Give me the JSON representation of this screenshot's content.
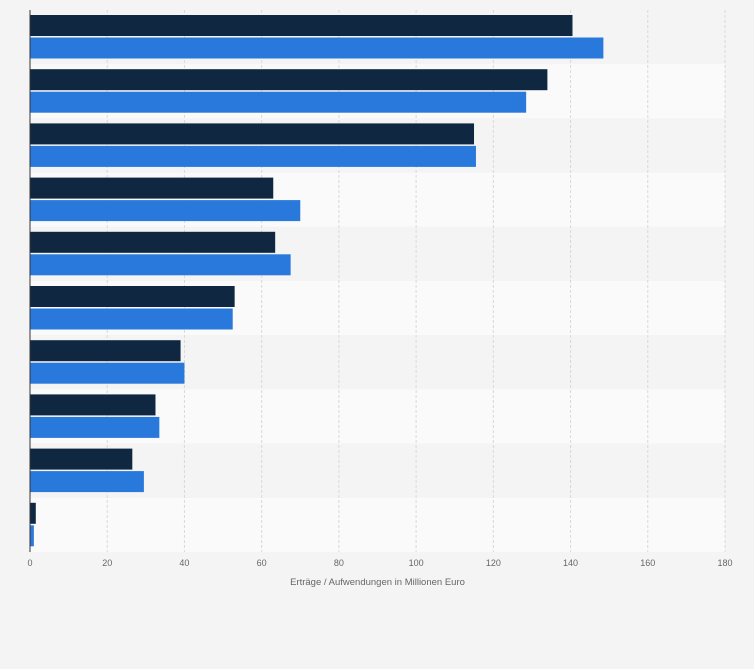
{
  "chart_data": {
    "type": "bar",
    "orientation": "horizontal",
    "categories": [
      "",
      "",
      "",
      "",
      "",
      "",
      "",
      "",
      "",
      ""
    ],
    "series": [
      {
        "color": "#0f2740",
        "values": [
          140.5,
          134,
          115,
          63,
          63.5,
          53,
          39,
          32.5,
          26.5,
          1.5
        ]
      },
      {
        "color": "#2979dc",
        "values": [
          148.5,
          128.5,
          115.5,
          70,
          67.5,
          52.5,
          40,
          33.5,
          29.5,
          1
        ]
      }
    ],
    "xlabel": "Erträge / Aufwendungen in Millionen Euro",
    "ylabel": "",
    "xlim": [
      0,
      180
    ],
    "xticks": [
      0,
      20,
      40,
      60,
      80,
      100,
      120,
      140,
      160,
      180
    ],
    "grid": true,
    "legend": "none"
  }
}
